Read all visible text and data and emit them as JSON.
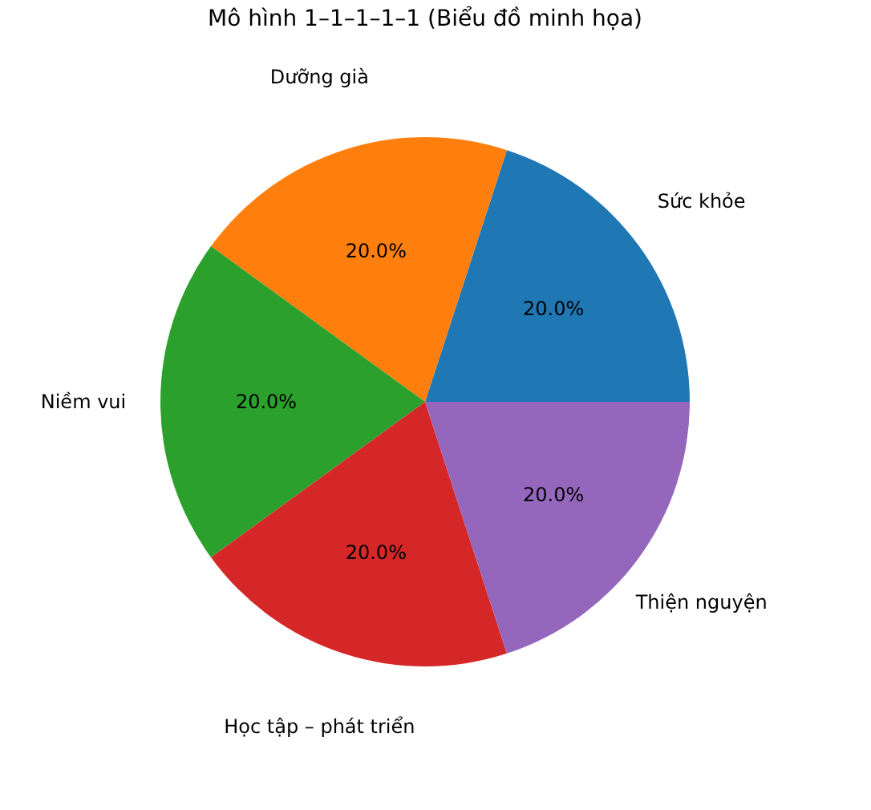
{
  "chart_data": {
    "type": "pie",
    "title": "Mô hình 1–1–1–1–1 (Biểu đồ minh họa)",
    "categories": [
      "Sức khỏe",
      "Dưỡng già",
      "Niềm vui",
      "Học tập – phát triển",
      "Thiện nguyện"
    ],
    "values": [
      20,
      20,
      20,
      20,
      20
    ],
    "colors": [
      "#1f77b4",
      "#ff7f0e",
      "#2ca02c",
      "#d62728",
      "#9467bd"
    ],
    "value_labels": [
      "20.0%",
      "20.0%",
      "20.0%",
      "20.0%",
      "20.0%"
    ],
    "legend": false
  }
}
